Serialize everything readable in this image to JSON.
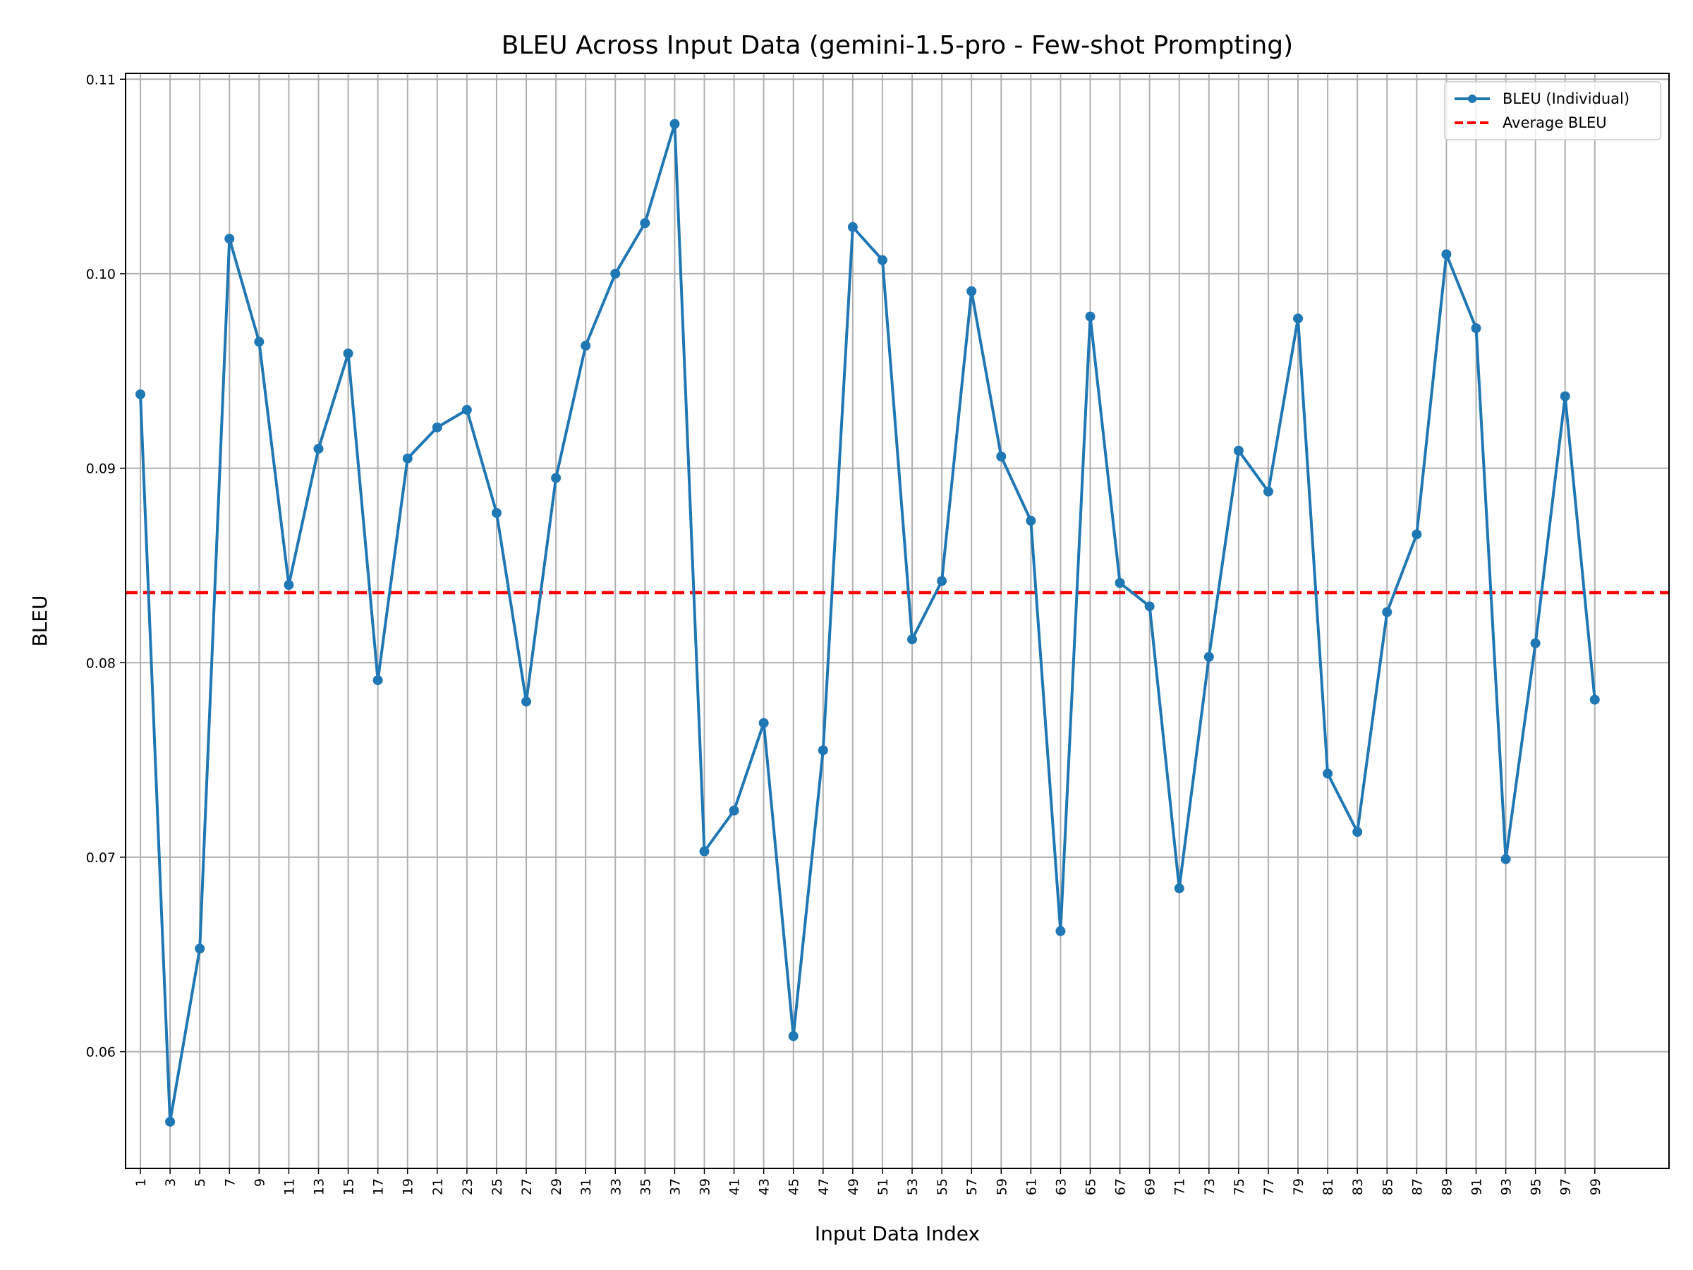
{
  "chart_data": {
    "type": "line",
    "title": "BLEU Across Input Data (gemini-1.5-pro - Few-shot Prompting)",
    "xlabel": "Input Data Index",
    "ylabel": "BLEU",
    "ylim": [
      0.054,
      0.1103
    ],
    "y_ticks": [
      0.06,
      0.07,
      0.08,
      0.09,
      0.1,
      0.11
    ],
    "y_tick_labels": [
      "0.06",
      "0.07",
      "0.08",
      "0.09",
      "0.10",
      "0.11"
    ],
    "x": [
      1,
      3,
      5,
      7,
      9,
      11,
      13,
      15,
      17,
      19,
      21,
      23,
      25,
      27,
      29,
      31,
      33,
      35,
      37,
      39,
      41,
      43,
      45,
      47,
      49,
      51,
      53,
      55,
      57,
      59,
      61,
      63,
      65,
      67,
      69,
      71,
      73,
      75,
      77,
      79,
      81,
      83,
      85,
      87,
      89,
      91,
      93,
      95,
      97,
      99
    ],
    "x_tick_labels": [
      "1",
      "3",
      "5",
      "7",
      "9",
      "11",
      "13",
      "15",
      "17",
      "19",
      "21",
      "23",
      "25",
      "27",
      "29",
      "31",
      "33",
      "35",
      "37",
      "39",
      "41",
      "43",
      "45",
      "47",
      "49",
      "51",
      "53",
      "55",
      "57",
      "59",
      "61",
      "63",
      "65",
      "67",
      "69",
      "71",
      "73",
      "75",
      "77",
      "79",
      "81",
      "83",
      "85",
      "87",
      "89",
      "91",
      "93",
      "95",
      "97",
      "99"
    ],
    "grid": true,
    "legend_placement": "top-right",
    "series": [
      {
        "name": "BLEU (Individual)",
        "color": "#1f77b4",
        "style": "solid-line-with-dots",
        "values": [
          0.0938,
          0.0564,
          0.0653,
          0.1018,
          0.0965,
          0.084,
          0.091,
          0.0959,
          0.0791,
          0.0905,
          0.0921,
          0.093,
          0.0877,
          0.078,
          0.0895,
          0.0963,
          0.1,
          0.1026,
          0.1077,
          0.0703,
          0.0724,
          0.0769,
          0.0608,
          0.0755,
          0.1024,
          0.1007,
          0.0812,
          0.0842,
          0.0991,
          0.0906,
          0.0873,
          0.0662,
          0.0978,
          0.0841,
          0.0829,
          0.0684,
          0.0803,
          0.0909,
          0.0888,
          0.0977,
          0.0743,
          0.0713,
          0.0826,
          0.0866,
          0.101,
          0.0972,
          0.0699,
          0.081,
          0.0937,
          0.0781
        ]
      },
      {
        "name": "Average BLEU",
        "color": "#ff0000",
        "style": "dashed-horizontal",
        "value": 0.0836
      }
    ]
  }
}
